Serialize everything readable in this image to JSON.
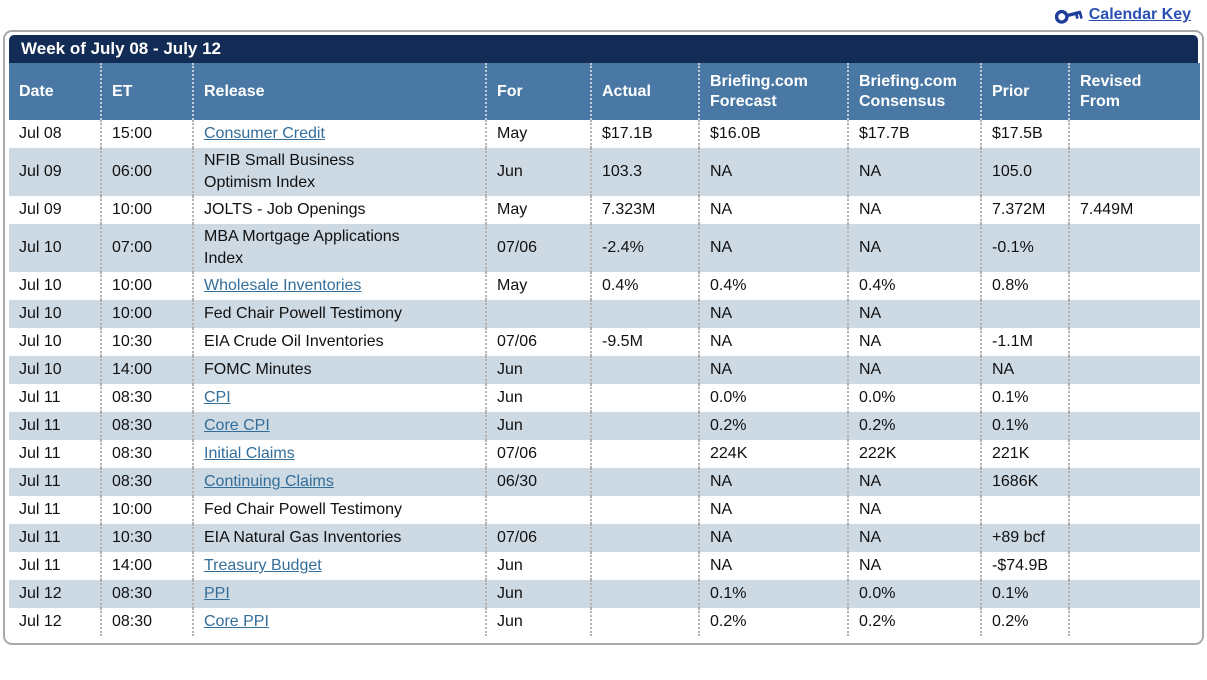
{
  "colors": {
    "title-bar-bg": "#122c55",
    "header-bg": "#4878a3",
    "row-alt-bg": "#cdd9e3",
    "link-color": "#336e9a",
    "key-link-color": "#2b50b5",
    "key-icon-color": "#1e3d9b"
  },
  "calendar_key": {
    "label": "Calendar Key",
    "icon": "key-icon"
  },
  "title": "Week of July 08 - July 12",
  "table": {
    "columns": [
      {
        "key": "date",
        "label": "Date"
      },
      {
        "key": "et",
        "label": "ET"
      },
      {
        "key": "release",
        "label": "Release"
      },
      {
        "key": "for",
        "label": "For"
      },
      {
        "key": "actual",
        "label": "Actual"
      },
      {
        "key": "forecast",
        "label": "Briefing.com Forecast"
      },
      {
        "key": "consensus",
        "label": "Briefing.com Consensus"
      },
      {
        "key": "prior",
        "label": "Prior"
      },
      {
        "key": "revised",
        "label": "Revised From"
      }
    ],
    "rows": [
      {
        "date": "Jul 08",
        "et": "15:00",
        "release": "Consumer Credit",
        "link": true,
        "for": "May",
        "actual": "$17.1B",
        "forecast": "$16.0B",
        "consensus": "$17.7B",
        "prior": "$17.5B",
        "revised": ""
      },
      {
        "date": "Jul 09",
        "et": "06:00",
        "release": "NFIB Small Business Optimism Index",
        "link": false,
        "for": "Jun",
        "actual": "103.3",
        "forecast": "NA",
        "consensus": "NA",
        "prior": "105.0",
        "revised": ""
      },
      {
        "date": "Jul 09",
        "et": "10:00",
        "release": "JOLTS - Job Openings",
        "link": false,
        "for": "May",
        "actual": "7.323M",
        "forecast": "NA",
        "consensus": "NA",
        "prior": "7.372M",
        "revised": "7.449M"
      },
      {
        "date": "Jul 10",
        "et": "07:00",
        "release": "MBA Mortgage Applications Index",
        "link": false,
        "for": "07/06",
        "actual": "-2.4%",
        "forecast": "NA",
        "consensus": "NA",
        "prior": "-0.1%",
        "revised": ""
      },
      {
        "date": "Jul 10",
        "et": "10:00",
        "release": "Wholesale Inventories",
        "link": true,
        "for": "May",
        "actual": "0.4%",
        "forecast": "0.4%",
        "consensus": "0.4%",
        "prior": "0.8%",
        "revised": ""
      },
      {
        "date": "Jul 10",
        "et": "10:00",
        "release": "Fed Chair Powell Testimony",
        "link": false,
        "for": "",
        "actual": "",
        "forecast": "NA",
        "consensus": "NA",
        "prior": "",
        "revised": ""
      },
      {
        "date": "Jul 10",
        "et": "10:30",
        "release": "EIA Crude Oil Inventories",
        "link": false,
        "for": "07/06",
        "actual": "-9.5M",
        "forecast": "NA",
        "consensus": "NA",
        "prior": "-1.1M",
        "revised": ""
      },
      {
        "date": "Jul 10",
        "et": "14:00",
        "release": "FOMC Minutes",
        "link": false,
        "for": "Jun",
        "actual": "",
        "forecast": "NA",
        "consensus": "NA",
        "prior": "NA",
        "revised": ""
      },
      {
        "date": "Jul 11",
        "et": "08:30",
        "release": "CPI",
        "link": true,
        "for": "Jun",
        "actual": "",
        "forecast": "0.0%",
        "consensus": "0.0%",
        "prior": "0.1%",
        "revised": ""
      },
      {
        "date": "Jul 11",
        "et": "08:30",
        "release": "Core CPI",
        "link": true,
        "for": "Jun",
        "actual": "",
        "forecast": "0.2%",
        "consensus": "0.2%",
        "prior": "0.1%",
        "revised": ""
      },
      {
        "date": "Jul 11",
        "et": "08:30",
        "release": "Initial Claims",
        "link": true,
        "for": "07/06",
        "actual": "",
        "forecast": "224K",
        "consensus": "222K",
        "prior": "221K",
        "revised": ""
      },
      {
        "date": "Jul 11",
        "et": "08:30",
        "release": "Continuing Claims",
        "link": true,
        "for": "06/30",
        "actual": "",
        "forecast": "NA",
        "consensus": "NA",
        "prior": "1686K",
        "revised": ""
      },
      {
        "date": "Jul 11",
        "et": "10:00",
        "release": "Fed Chair Powell Testimony",
        "link": false,
        "for": "",
        "actual": "",
        "forecast": "NA",
        "consensus": "NA",
        "prior": "",
        "revised": ""
      },
      {
        "date": "Jul 11",
        "et": "10:30",
        "release": "EIA Natural Gas Inventories",
        "link": false,
        "for": "07/06",
        "actual": "",
        "forecast": "NA",
        "consensus": "NA",
        "prior": "+89 bcf",
        "revised": ""
      },
      {
        "date": "Jul 11",
        "et": "14:00",
        "release": "Treasury Budget",
        "link": true,
        "for": "Jun",
        "actual": "",
        "forecast": "NA",
        "consensus": "NA",
        "prior": "-$74.9B",
        "revised": ""
      },
      {
        "date": "Jul 12",
        "et": "08:30",
        "release": "PPI",
        "link": true,
        "for": "Jun",
        "actual": "",
        "forecast": "0.1%",
        "consensus": "0.0%",
        "prior": "0.1%",
        "revised": ""
      },
      {
        "date": "Jul 12",
        "et": "08:30",
        "release": "Core PPI",
        "link": true,
        "for": "Jun",
        "actual": "",
        "forecast": "0.2%",
        "consensus": "0.2%",
        "prior": "0.2%",
        "revised": ""
      }
    ]
  }
}
